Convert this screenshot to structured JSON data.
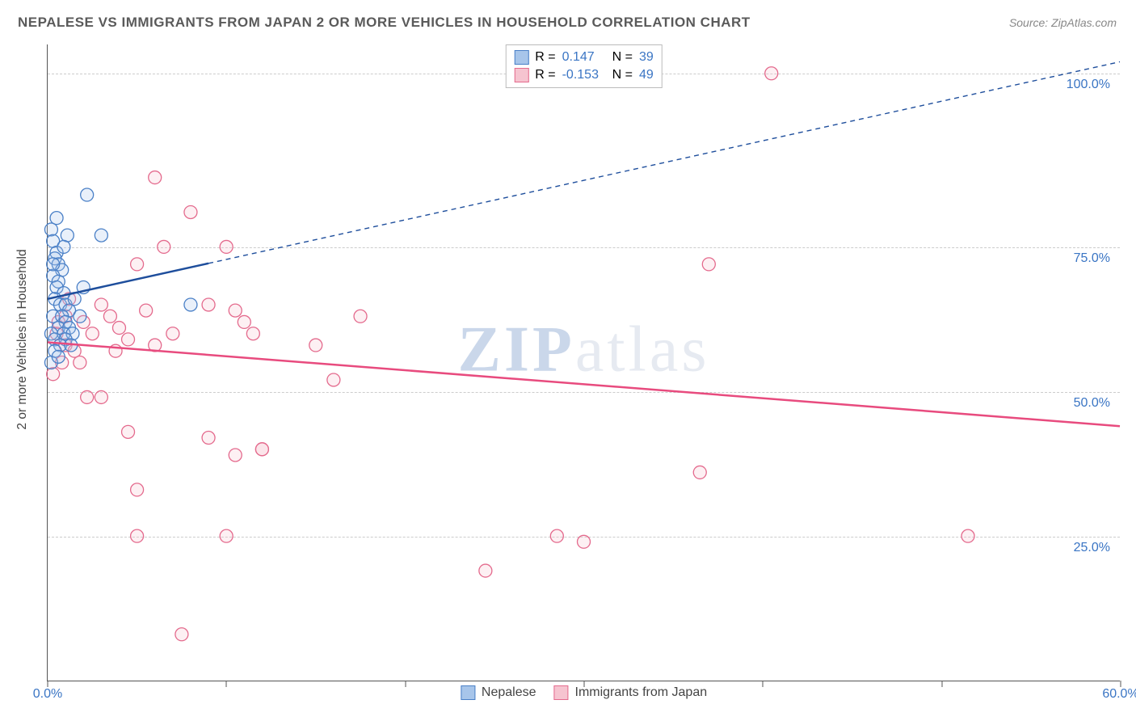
{
  "title": "NEPALESE VS IMMIGRANTS FROM JAPAN 2 OR MORE VEHICLES IN HOUSEHOLD CORRELATION CHART",
  "source": "Source: ZipAtlas.com",
  "ylabel": "2 or more Vehicles in Household",
  "watermark_a": "ZIP",
  "watermark_b": "atlas",
  "chart": {
    "type": "scatter",
    "background_color": "#ffffff",
    "grid_color": "#cccccc",
    "axis_color": "#555555",
    "tick_label_color": "#3a75c4",
    "tick_fontsize": 16,
    "title_fontsize": 17,
    "label_fontsize": 15.5,
    "xlim": [
      0,
      60
    ],
    "ylim": [
      0,
      110
    ],
    "y_gridlines": [
      25,
      50,
      75,
      105
    ],
    "y_tick_labels": {
      "25": "25.0%",
      "50": "50.0%",
      "75": "75.0%",
      "105": "100.0%"
    },
    "x_ticks": [
      0,
      10,
      20,
      30,
      40,
      50,
      60
    ],
    "x_tick_labels": {
      "0": "0.0%",
      "60": "60.0%"
    },
    "marker_radius": 8,
    "marker_fill_opacity": 0.25,
    "line_width_solid": 2.5,
    "line_width_dashed": 1.4,
    "series": [
      {
        "name": "Nepalese",
        "color_fill": "#a7c5ea",
        "color_stroke": "#4a80c7",
        "trend_color": "#1e4e9c",
        "regression": {
          "x0": 0,
          "y0": 66,
          "x1": 60,
          "y1": 107,
          "solid_until_x": 9,
          "dash": "6 5"
        },
        "stats": {
          "R": "0.147",
          "N": "39"
        },
        "points": [
          [
            0.2,
            78
          ],
          [
            0.3,
            76
          ],
          [
            0.5,
            74
          ],
          [
            0.4,
            73
          ],
          [
            0.6,
            72
          ],
          [
            0.8,
            71
          ],
          [
            0.3,
            70
          ],
          [
            0.6,
            69
          ],
          [
            0.5,
            68
          ],
          [
            0.9,
            67
          ],
          [
            0.4,
            66
          ],
          [
            0.7,
            65
          ],
          [
            1.0,
            65
          ],
          [
            1.2,
            64
          ],
          [
            0.3,
            63
          ],
          [
            0.8,
            63
          ],
          [
            1.0,
            62
          ],
          [
            0.6,
            61
          ],
          [
            1.2,
            61
          ],
          [
            0.2,
            60
          ],
          [
            0.9,
            60
          ],
          [
            1.4,
            60
          ],
          [
            0.4,
            59
          ],
          [
            1.0,
            59
          ],
          [
            0.7,
            58
          ],
          [
            1.3,
            58
          ],
          [
            0.5,
            80
          ],
          [
            1.1,
            77
          ],
          [
            2.2,
            84
          ],
          [
            3.0,
            77
          ],
          [
            8.0,
            65
          ],
          [
            0.2,
            55
          ],
          [
            0.4,
            57
          ],
          [
            0.6,
            56
          ],
          [
            1.5,
            66
          ],
          [
            2.0,
            68
          ],
          [
            0.9,
            75
          ],
          [
            0.3,
            72
          ],
          [
            1.8,
            63
          ]
        ]
      },
      {
        "name": "Immigants from Japan",
        "legend_label": "Immigrants from Japan",
        "color_fill": "#f6c4d0",
        "color_stroke": "#e46a8d",
        "trend_color": "#e84b7e",
        "regression": {
          "x0": 0,
          "y0": 58.5,
          "x1": 60,
          "y1": 44,
          "solid_until_x": 60,
          "dash": ""
        },
        "stats": {
          "R": "-0.153",
          "N": "49"
        },
        "points": [
          [
            0.5,
            60
          ],
          [
            1.0,
            58
          ],
          [
            0.8,
            55
          ],
          [
            1.5,
            57
          ],
          [
            2.0,
            62
          ],
          [
            2.5,
            60
          ],
          [
            3.0,
            65
          ],
          [
            3.5,
            63
          ],
          [
            4.0,
            61
          ],
          [
            4.5,
            59
          ],
          [
            5.0,
            72
          ],
          [
            5.5,
            64
          ],
          [
            6.0,
            87
          ],
          [
            6.5,
            75
          ],
          [
            7.0,
            60
          ],
          [
            8.0,
            81
          ],
          [
            9.0,
            65
          ],
          [
            10.0,
            75
          ],
          [
            10.5,
            64
          ],
          [
            11.0,
            62
          ],
          [
            12.0,
            40
          ],
          [
            11.5,
            60
          ],
          [
            15.0,
            58
          ],
          [
            16.0,
            52
          ],
          [
            17.5,
            63
          ],
          [
            3.0,
            49
          ],
          [
            4.5,
            43
          ],
          [
            5.0,
            33
          ],
          [
            9.0,
            42
          ],
          [
            10.5,
            39
          ],
          [
            12.0,
            40
          ],
          [
            5.0,
            25
          ],
          [
            10.0,
            25
          ],
          [
            7.5,
            8
          ],
          [
            24.5,
            19
          ],
          [
            28.5,
            25
          ],
          [
            30.0,
            24
          ],
          [
            36.5,
            36
          ],
          [
            37.0,
            72
          ],
          [
            40.5,
            105
          ],
          [
            51.5,
            25
          ],
          [
            1.0,
            63
          ],
          [
            1.8,
            55
          ],
          [
            2.2,
            49
          ],
          [
            3.8,
            57
          ],
          [
            0.3,
            53
          ],
          [
            0.6,
            62
          ],
          [
            1.2,
            66
          ],
          [
            6.0,
            58
          ]
        ]
      }
    ]
  },
  "legend_top": {
    "rows": [
      {
        "swatch_fill": "#a7c5ea",
        "swatch_stroke": "#4a80c7",
        "r_label": "R =",
        "r_val": "0.147",
        "n_label": "N =",
        "n_val": "39"
      },
      {
        "swatch_fill": "#f6c4d0",
        "swatch_stroke": "#e46a8d",
        "r_label": "R =",
        "r_val": "-0.153",
        "n_label": "N =",
        "n_val": "49"
      }
    ]
  },
  "legend_bottom": {
    "items": [
      {
        "swatch_fill": "#a7c5ea",
        "swatch_stroke": "#4a80c7",
        "label": "Nepalese"
      },
      {
        "swatch_fill": "#f6c4d0",
        "swatch_stroke": "#e46a8d",
        "label": "Immigrants from Japan"
      }
    ]
  }
}
